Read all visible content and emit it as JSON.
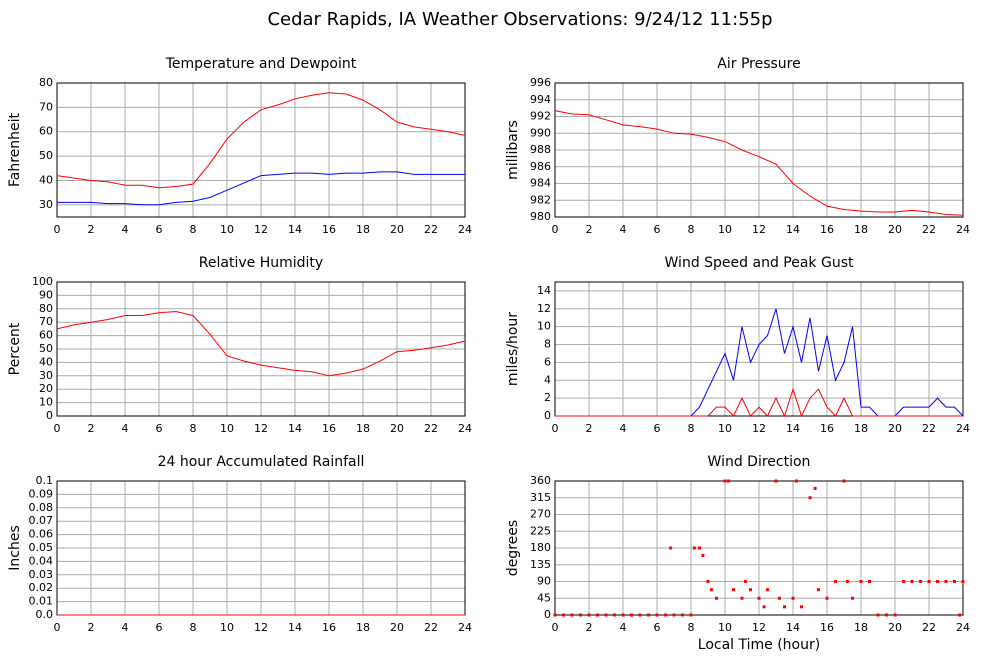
{
  "title": "Cedar Rapids, IA Weather Observations: 9/24/12 11:55p",
  "chart_data": [
    {
      "type": "line",
      "title": "Temperature and Dewpoint",
      "ylabel": "Fahrenheit",
      "x": [
        0,
        1,
        2,
        3,
        4,
        5,
        6,
        7,
        8,
        9,
        10,
        11,
        12,
        13,
        14,
        15,
        16,
        17,
        18,
        19,
        20,
        21,
        22,
        23,
        24
      ],
      "series": [
        {
          "color": "#ff0000",
          "values": [
            42,
            41,
            40,
            39.5,
            38,
            38,
            37,
            37.5,
            38.5,
            47,
            57,
            64,
            69,
            71,
            73.5,
            75,
            76,
            75.5,
            73,
            69,
            64,
            62,
            61,
            60,
            58.5
          ]
        },
        {
          "color": "#0000ff",
          "values": [
            31,
            31,
            31,
            30.5,
            30.5,
            30,
            30,
            31,
            31.5,
            33,
            36,
            39,
            42,
            42.5,
            43,
            43,
            42.5,
            43,
            43,
            43.5,
            43.5,
            42.5,
            42.5,
            42.5,
            42.5
          ]
        }
      ],
      "xlim": [
        0,
        24
      ],
      "xticks": [
        0,
        2,
        4,
        6,
        8,
        10,
        12,
        14,
        16,
        18,
        20,
        22,
        24
      ],
      "ylim": [
        25,
        80
      ],
      "yticks": [
        30,
        40,
        50,
        60,
        70,
        80
      ],
      "grid": true
    },
    {
      "type": "line",
      "title": "Air Pressure",
      "ylabel": "millibars",
      "x": [
        0,
        1,
        2,
        3,
        4,
        5,
        6,
        7,
        8,
        9,
        10,
        11,
        12,
        13,
        14,
        15,
        16,
        17,
        18,
        19,
        20,
        21,
        22,
        23,
        24
      ],
      "series": [
        {
          "color": "#ff0000",
          "values": [
            992.7,
            992.3,
            992.2,
            991.6,
            991,
            990.8,
            990.5,
            990,
            989.9,
            989.5,
            989,
            988,
            987.2,
            986.3,
            984,
            982.5,
            981.3,
            980.9,
            980.7,
            980.6,
            980.6,
            980.8,
            980.6,
            980.3,
            980.2
          ]
        }
      ],
      "xlim": [
        0,
        24
      ],
      "xticks": [
        0,
        2,
        4,
        6,
        8,
        10,
        12,
        14,
        16,
        18,
        20,
        22,
        24
      ],
      "ylim": [
        980,
        996
      ],
      "yticks": [
        980,
        982,
        984,
        986,
        988,
        990,
        992,
        994,
        996
      ],
      "grid": true
    },
    {
      "type": "line",
      "title": "Relative Humidity",
      "ylabel": "Percent",
      "x": [
        0,
        1,
        2,
        3,
        4,
        5,
        6,
        7,
        8,
        9,
        10,
        11,
        12,
        13,
        14,
        15,
        16,
        17,
        18,
        19,
        20,
        21,
        22,
        23,
        24
      ],
      "series": [
        {
          "color": "#ff0000",
          "values": [
            65,
            68,
            70,
            72,
            75,
            75,
            77,
            78,
            75,
            61,
            45,
            41,
            38,
            36,
            34,
            33,
            30,
            32,
            35,
            41,
            48,
            49,
            51,
            53,
            56
          ]
        }
      ],
      "xlim": [
        0,
        24
      ],
      "xticks": [
        0,
        2,
        4,
        6,
        8,
        10,
        12,
        14,
        16,
        18,
        20,
        22,
        24
      ],
      "ylim": [
        0,
        100
      ],
      "yticks": [
        0,
        10,
        20,
        30,
        40,
        50,
        60,
        70,
        80,
        90,
        100
      ],
      "grid": true
    },
    {
      "type": "line",
      "title": "Wind Speed and Peak Gust",
      "ylabel": "miles/hour",
      "x": [
        0,
        0.5,
        1,
        1.5,
        2,
        2.5,
        3,
        3.5,
        4,
        4.5,
        5,
        5.5,
        6,
        6.5,
        7,
        7.5,
        8,
        8.5,
        9,
        9.5,
        10,
        10.5,
        11,
        11.5,
        12,
        12.5,
        13,
        13.5,
        14,
        14.5,
        15,
        15.5,
        16,
        16.5,
        17,
        17.5,
        18,
        18.5,
        19,
        19.5,
        20,
        20.5,
        21,
        21.5,
        22,
        22.5,
        23,
        23.5,
        24
      ],
      "series": [
        {
          "color": "#0000ff",
          "values": [
            0,
            0,
            0,
            0,
            0,
            0,
            0,
            0,
            0,
            0,
            0,
            0,
            0,
            0,
            0,
            0,
            0,
            1,
            3,
            5,
            7,
            4,
            10,
            6,
            8,
            9,
            12,
            7,
            10,
            6,
            11,
            5,
            9,
            4,
            6,
            10,
            1,
            1,
            0,
            0,
            0,
            1,
            1,
            1,
            1,
            2,
            1,
            1,
            0
          ]
        },
        {
          "color": "#ff0000",
          "values": [
            0,
            0,
            0,
            0,
            0,
            0,
            0,
            0,
            0,
            0,
            0,
            0,
            0,
            0,
            0,
            0,
            0,
            0,
            0,
            1,
            1,
            0,
            2,
            0,
            1,
            0,
            2,
            0,
            3,
            0,
            2,
            3,
            1,
            0,
            2,
            0,
            0,
            0,
            0,
            0,
            0,
            0,
            0,
            0,
            0,
            0,
            0,
            0,
            0
          ]
        }
      ],
      "xlim": [
        0,
        24
      ],
      "xticks": [
        0,
        2,
        4,
        6,
        8,
        10,
        12,
        14,
        16,
        18,
        20,
        22,
        24
      ],
      "ylim": [
        0,
        15
      ],
      "yticks": [
        0,
        2,
        4,
        6,
        8,
        10,
        12,
        14
      ],
      "grid": true
    },
    {
      "type": "line",
      "title": "24 hour Accumulated Rainfall",
      "ylabel": "Inches",
      "x": [
        0,
        24
      ],
      "series": [
        {
          "color": "#ff0000",
          "values": [
            0,
            0
          ]
        }
      ],
      "xlim": [
        0,
        24
      ],
      "xticks": [
        0,
        2,
        4,
        6,
        8,
        10,
        12,
        14,
        16,
        18,
        20,
        22,
        24
      ],
      "ylim": [
        0,
        0.1
      ],
      "yticks": [
        {
          "value": 0,
          "label": "0.0"
        },
        0.01,
        0.02,
        0.03,
        0.04,
        0.05,
        0.06,
        0.07,
        0.08,
        0.09,
        0.1
      ],
      "grid": true
    },
    {
      "type": "scatter",
      "title": "Wind Direction",
      "ylabel": "degrees",
      "xlabel": "Local Time (hour)",
      "x": [
        0,
        0.5,
        1,
        1.5,
        2,
        2.5,
        3,
        3.5,
        4,
        4.5,
        5,
        5.5,
        6,
        6.5,
        6.8,
        7,
        7.5,
        8,
        8.2,
        8.5,
        8.7,
        9,
        9.2,
        9.5,
        10,
        10.2,
        10.5,
        11,
        11.2,
        11.5,
        12,
        12.3,
        12.5,
        13,
        13.2,
        13.5,
        14,
        14.2,
        14.5,
        15,
        15.3,
        15.5,
        16,
        16.5,
        17,
        17.2,
        17.5,
        18,
        18.5,
        19,
        19.5,
        20,
        20.5,
        21,
        21.5,
        22,
        22.5,
        23,
        23.5,
        23.8,
        24
      ],
      "series": [
        {
          "color": "#ff0000",
          "values": [
            0,
            0,
            0,
            0,
            0,
            0,
            0,
            0,
            0,
            0,
            0,
            0,
            0,
            0,
            180,
            0,
            0,
            0,
            180,
            180,
            160,
            90,
            68,
            45,
            360,
            360,
            68,
            45,
            90,
            68,
            45,
            22,
            68,
            360,
            45,
            22,
            45,
            360,
            22,
            315,
            340,
            68,
            45,
            90,
            360,
            90,
            45,
            90,
            90,
            0,
            0,
            0,
            90,
            90,
            90,
            90,
            90,
            90,
            90,
            0,
            90
          ]
        }
      ],
      "xlim": [
        0,
        24
      ],
      "xticks": [
        0,
        2,
        4,
        6,
        8,
        10,
        12,
        14,
        16,
        18,
        20,
        22,
        24
      ],
      "ylim": [
        0,
        360
      ],
      "yticks": [
        0,
        45,
        90,
        135,
        180,
        225,
        270,
        315,
        360
      ],
      "grid": true
    }
  ]
}
